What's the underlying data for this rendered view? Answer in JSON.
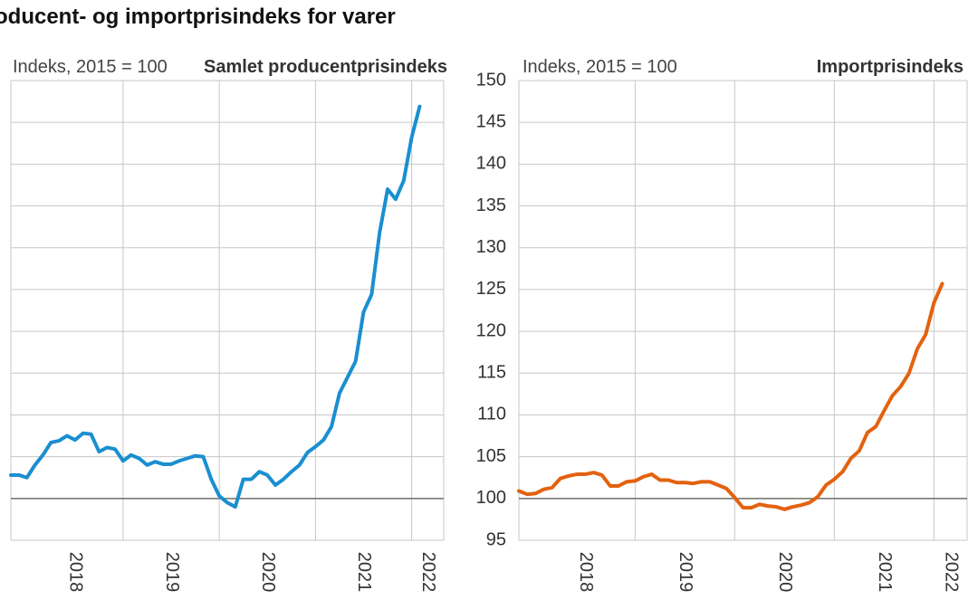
{
  "page": {
    "title": "oducent- og importprisindeks for varer"
  },
  "colors": {
    "ppi": "#1a8fd0",
    "import": "#e3620f",
    "grid": "#c7c7c7",
    "baseline": "#6f6f6a"
  },
  "chart_data": [
    {
      "type": "line",
      "title": "Samlet producentprisindeks",
      "ylabel": "Indeks, 2015 = 100",
      "ylim": [
        95,
        150
      ],
      "x_tick_labels": [
        "2018",
        "2019",
        "2020",
        "2021",
        "2022"
      ],
      "series": [
        {
          "x": [
            "2017-11",
            "2017-12",
            "2018-01",
            "2018-02",
            "2018-03",
            "2018-04",
            "2018-05",
            "2018-06",
            "2018-07",
            "2018-08",
            "2018-09",
            "2018-10",
            "2018-11",
            "2018-12",
            "2019-01",
            "2019-02",
            "2019-03",
            "2019-04",
            "2019-05",
            "2019-06",
            "2019-07",
            "2019-08",
            "2019-09",
            "2019-10",
            "2019-11",
            "2019-12",
            "2020-01",
            "2020-02",
            "2020-03",
            "2020-04",
            "2020-05",
            "2020-06",
            "2020-07",
            "2020-08",
            "2020-09",
            "2020-10",
            "2020-11",
            "2020-12",
            "2021-01",
            "2021-02",
            "2021-03",
            "2021-04",
            "2021-05",
            "2021-06",
            "2021-07",
            "2021-08",
            "2021-09",
            "2021-10",
            "2021-11",
            "2021-12",
            "2022-01",
            "2022-02"
          ],
          "values": [
            102.8,
            102.8,
            102.5,
            104.0,
            105.2,
            106.7,
            106.9,
            107.5,
            107.0,
            107.8,
            107.7,
            105.6,
            106.1,
            105.9,
            104.5,
            105.2,
            104.8,
            104.0,
            104.4,
            104.1,
            104.1,
            104.5,
            104.8,
            105.1,
            105.0,
            102.3,
            100.3,
            99.5,
            99.0,
            102.3,
            102.3,
            103.2,
            102.8,
            101.6,
            102.3,
            103.2,
            104.0,
            105.5,
            106.2,
            107.0,
            108.6,
            112.6,
            114.5,
            116.4,
            122.3,
            124.4,
            131.8,
            137.0,
            135.8,
            138.0,
            143.2,
            146.9
          ]
        }
      ]
    },
    {
      "type": "line",
      "title": "Importprisindeks",
      "ylabel": "Indeks, 2015 = 100",
      "ylim": [
        95,
        150
      ],
      "y_ticks": [
        95,
        100,
        105,
        110,
        115,
        120,
        125,
        130,
        135,
        140,
        145,
        150
      ],
      "x_tick_labels": [
        "2018",
        "2019",
        "2020",
        "2021",
        "2022"
      ],
      "series": [
        {
          "x": [
            "2017-11",
            "2017-12",
            "2018-01",
            "2018-02",
            "2018-03",
            "2018-04",
            "2018-05",
            "2018-06",
            "2018-07",
            "2018-08",
            "2018-09",
            "2018-10",
            "2018-11",
            "2018-12",
            "2019-01",
            "2019-02",
            "2019-03",
            "2019-04",
            "2019-05",
            "2019-06",
            "2019-07",
            "2019-08",
            "2019-09",
            "2019-10",
            "2019-11",
            "2019-12",
            "2020-01",
            "2020-02",
            "2020-03",
            "2020-04",
            "2020-05",
            "2020-06",
            "2020-07",
            "2020-08",
            "2020-09",
            "2020-10",
            "2020-11",
            "2020-12",
            "2021-01",
            "2021-02",
            "2021-03",
            "2021-04",
            "2021-05",
            "2021-06",
            "2021-07",
            "2021-08",
            "2021-09",
            "2021-10",
            "2021-11",
            "2021-12",
            "2022-01",
            "2022-02"
          ],
          "values": [
            100.9,
            100.5,
            100.6,
            101.1,
            101.3,
            102.4,
            102.7,
            102.9,
            102.9,
            103.1,
            102.8,
            101.5,
            101.5,
            102.0,
            102.1,
            102.6,
            102.9,
            102.2,
            102.2,
            101.9,
            101.9,
            101.8,
            102.0,
            102.0,
            101.6,
            101.2,
            100.1,
            98.9,
            98.9,
            99.3,
            99.1,
            99.0,
            98.7,
            99.0,
            99.2,
            99.5,
            100.2,
            101.6,
            102.3,
            103.2,
            104.8,
            105.7,
            107.9,
            108.6,
            110.5,
            112.3,
            113.4,
            115.0,
            117.9,
            119.6,
            123.4,
            125.7
          ]
        }
      ]
    }
  ]
}
